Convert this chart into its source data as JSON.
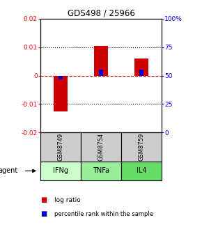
{
  "title": "GDS498 / 25966",
  "samples": [
    "GSM8749",
    "GSM8754",
    "GSM8759"
  ],
  "agents": [
    "IFNg",
    "TNFa",
    "IL4"
  ],
  "agent_colors": [
    "#ccffcc",
    "#99ee99",
    "#66dd66"
  ],
  "log_ratios": [
    -0.0125,
    0.0105,
    0.006
  ],
  "percentile_ranks": [
    47,
    55,
    55
  ],
  "ylim_left": [
    -0.02,
    0.02
  ],
  "ylim_right": [
    0,
    100
  ],
  "yticks_left": [
    -0.02,
    -0.01,
    0.0,
    0.01,
    0.02
  ],
  "yticks_right": [
    0,
    25,
    50,
    75,
    100
  ],
  "ytick_labels_left": [
    "-0.02",
    "-0.01",
    "0",
    "0.01",
    "0.02"
  ],
  "ytick_labels_right": [
    "0",
    "25",
    "50",
    "75",
    "100%"
  ],
  "bar_color_log": "#cc0000",
  "bar_color_pct": "#0000cc",
  "sample_box_color": "#cccccc",
  "agent_box_border": "#006600",
  "zero_line_color": "#cc0000",
  "bar_width": 0.35,
  "pct_bar_width": 0.12
}
